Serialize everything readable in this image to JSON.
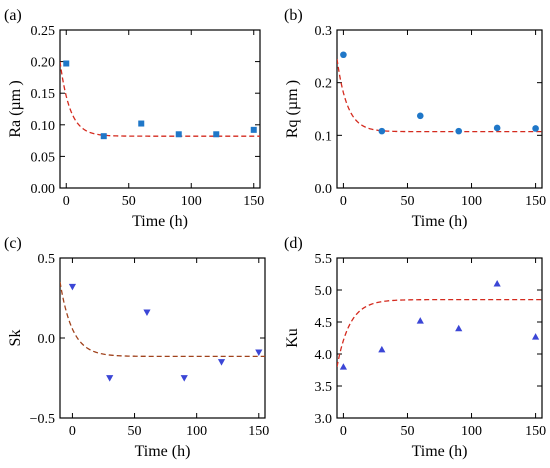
{
  "colors": {
    "marker_blue": "#1f77c8",
    "marker_indigo": "#3b46d6",
    "fit_red": "#d42a1e",
    "fit_brown": "#a0421c"
  },
  "chart_data": [
    {
      "panel": "(a)",
      "type": "scatter",
      "xlabel": "Time (h)",
      "ylabel": "Ra (µm )",
      "xlim": [
        -5,
        155
      ],
      "ylim": [
        0,
        0.25
      ],
      "xticks": [
        0,
        50,
        100,
        150
      ],
      "yticks": [
        0.0,
        0.05,
        0.1,
        0.15,
        0.2,
        0.25
      ],
      "ytick_labels": [
        "0.00",
        "0.05",
        "0.10",
        "0.15",
        "0.20",
        "0.25"
      ],
      "marker": "square",
      "points": [
        {
          "x": 0,
          "y": 0.197
        },
        {
          "x": 30,
          "y": 0.082
        },
        {
          "x": 60,
          "y": 0.102
        },
        {
          "x": 90,
          "y": 0.085
        },
        {
          "x": 120,
          "y": 0.085
        },
        {
          "x": 150,
          "y": 0.092
        }
      ],
      "fit": {
        "style": "dashed",
        "start": 0.2,
        "plateau": 0.082,
        "tau": 8
      }
    },
    {
      "panel": "(b)",
      "type": "scatter",
      "xlabel": "Time (h)",
      "ylabel": "Rq (µm )",
      "xlim": [
        -5,
        155
      ],
      "ylim": [
        0,
        0.3
      ],
      "xticks": [
        0,
        50,
        100,
        150
      ],
      "yticks": [
        0.0,
        0.1,
        0.2,
        0.3
      ],
      "ytick_labels": [
        "0.0",
        "0.1",
        "0.2",
        "0.3"
      ],
      "marker": "circle",
      "points": [
        {
          "x": 0,
          "y": 0.253
        },
        {
          "x": 30,
          "y": 0.108
        },
        {
          "x": 60,
          "y": 0.137
        },
        {
          "x": 90,
          "y": 0.108
        },
        {
          "x": 120,
          "y": 0.114
        },
        {
          "x": 150,
          "y": 0.113
        }
      ],
      "fit": {
        "style": "dashed",
        "start": 0.245,
        "plateau": 0.107,
        "tau": 8
      }
    },
    {
      "panel": "(c)",
      "type": "scatter",
      "xlabel": "Time (h)",
      "ylabel": "Sk",
      "xlim": [
        -10,
        155
      ],
      "ylim": [
        -0.5,
        0.5
      ],
      "xticks": [
        0,
        50,
        100,
        150
      ],
      "yticks": [
        -0.5,
        0.0,
        0.5
      ],
      "ytick_labels": [
        "−0.5",
        "0.0",
        "0.5"
      ],
      "marker": "triangle-down",
      "points": [
        {
          "x": 0,
          "y": 0.32
        },
        {
          "x": 30,
          "y": -0.25
        },
        {
          "x": 60,
          "y": 0.16
        },
        {
          "x": 90,
          "y": -0.25
        },
        {
          "x": 120,
          "y": -0.15
        },
        {
          "x": 150,
          "y": -0.09
        }
      ],
      "fit": {
        "style": "dashed",
        "start": 0.35,
        "plateau": -0.115,
        "tau": 10
      }
    },
    {
      "panel": "(d)",
      "type": "scatter",
      "xlabel": "Time (h)",
      "ylabel": "Ku",
      "xlim": [
        -5,
        155
      ],
      "ylim": [
        3.0,
        5.5
      ],
      "xticks": [
        0,
        50,
        100,
        150
      ],
      "yticks": [
        3.0,
        3.5,
        4.0,
        4.5,
        5.0,
        5.5
      ],
      "ytick_labels": [
        "3.0",
        "3.5",
        "4.0",
        "4.5",
        "5.0",
        "5.5"
      ],
      "marker": "triangle-up",
      "points": [
        {
          "x": 0,
          "y": 3.8
        },
        {
          "x": 30,
          "y": 4.07
        },
        {
          "x": 60,
          "y": 4.52
        },
        {
          "x": 90,
          "y": 4.4
        },
        {
          "x": 120,
          "y": 5.1
        },
        {
          "x": 150,
          "y": 4.27
        }
      ],
      "fit": {
        "style": "dashed",
        "start": 3.8,
        "plateau": 4.85,
        "tau": 10
      }
    }
  ]
}
